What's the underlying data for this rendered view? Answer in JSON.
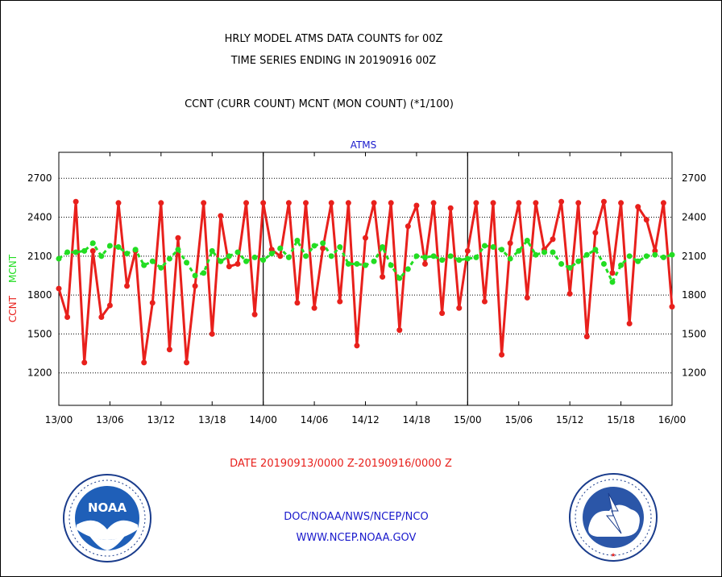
{
  "chart_data": {
    "type": "line",
    "title": "HRLY MODEL ATMS DATA COUNTS for 00Z",
    "subtitle": "TIME SERIES ENDING IN 20190916 00Z",
    "description_line": "CCNT (CURR COUNT) MCNT (MON COUNT) (*1/100)",
    "panel_label": "ATMS",
    "ylabel_ccnt": "CCNT",
    "ylabel_mcnt": "MCNT",
    "xlabel": "DATE 20190913/0000 Z-20190916/0000 Z",
    "x_tick_labels": [
      "13/00",
      "13/06",
      "13/12",
      "13/18",
      "14/00",
      "14/06",
      "14/12",
      "14/18",
      "15/00",
      "15/06",
      "15/12",
      "15/18",
      "16/00"
    ],
    "x_range_hours": [
      0,
      72
    ],
    "y_ticks": [
      1200,
      1500,
      1800,
      2100,
      2400,
      2700
    ],
    "ylim": [
      950,
      2900
    ],
    "grid": true,
    "day_separators_hours": [
      24,
      48
    ],
    "series": [
      {
        "name": "CCNT",
        "color": "#e8201c",
        "values": [
          1850,
          1630,
          2520,
          1280,
          2140,
          1630,
          1720,
          2510,
          1870,
          2140,
          1280,
          1740,
          2510,
          1380,
          2240,
          1280,
          1870,
          2510,
          1500,
          2410,
          2020,
          2040,
          2510,
          1650,
          2510,
          2150,
          2100,
          2510,
          1740,
          2510,
          1700,
          2160,
          2510,
          1750,
          2510,
          1410,
          2240,
          2510,
          1940,
          2510,
          1530,
          2330,
          2490,
          2040,
          2510,
          1660,
          2470,
          1700,
          2140,
          2510,
          1750,
          2510,
          1340,
          2200,
          2510,
          1780,
          2510,
          2150,
          2230,
          2520,
          1810,
          2510,
          1480,
          2280,
          2520,
          1970,
          2510,
          1580,
          2480,
          2380,
          2140,
          2510,
          1710
        ]
      },
      {
        "name": "MCNT",
        "color": "#22dd22",
        "values": [
          2080,
          2130,
          2130,
          2140,
          2200,
          2100,
          2180,
          2170,
          2120,
          2150,
          2030,
          2060,
          2010,
          2080,
          2150,
          2050,
          1950,
          1970,
          2140,
          2060,
          2100,
          2130,
          2060,
          2090,
          2070,
          2120,
          2160,
          2090,
          2220,
          2100,
          2180,
          2200,
          2100,
          2170,
          2040,
          2040,
          2030,
          2060,
          2170,
          2030,
          1930,
          2000,
          2100,
          2090,
          2100,
          2070,
          2100,
          2070,
          2080,
          2090,
          2180,
          2170,
          2150,
          2080,
          2140,
          2220,
          2110,
          2130,
          2130,
          2040,
          2010,
          2060,
          2110,
          2150,
          2040,
          1900,
          2030,
          2100,
          2060,
          2100,
          2110,
          2090,
          2110
        ]
      }
    ]
  },
  "footer": {
    "agency_line": "DOC/NOAA/NWS/NCEP/NCO",
    "url_line": "WWW.NCEP.NOAA.GOV"
  },
  "logos": {
    "noaa": {
      "label": "NOAA",
      "ring_text": "NATIONAL OCEANIC AND ATMOSPHERIC ADMINISTRATION · U.S. DEPARTMENT OF COMMERCE"
    },
    "nws": {
      "ring_text": "NATIONAL WEATHER SERVICE"
    }
  }
}
